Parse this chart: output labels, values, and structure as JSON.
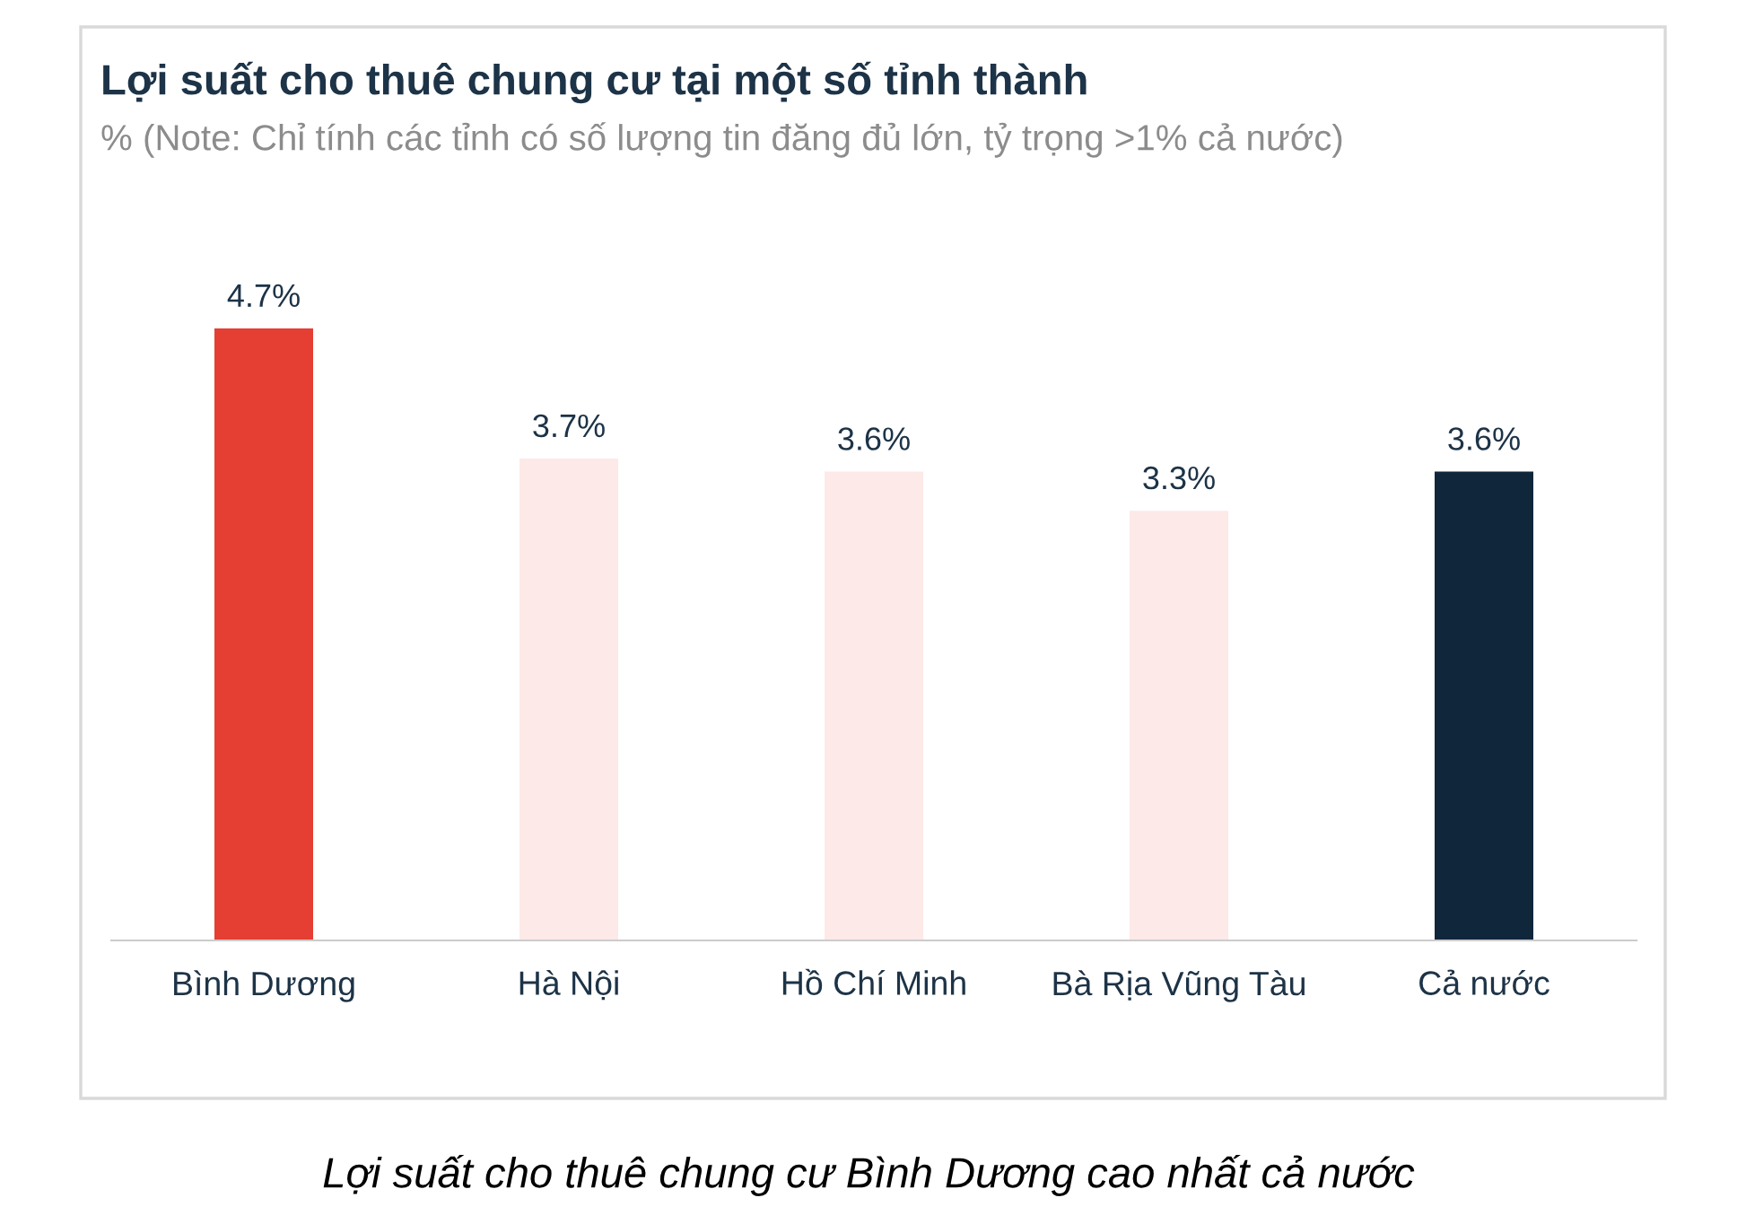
{
  "chart_data": {
    "type": "bar",
    "title": "Lợi suất cho thuê chung cư tại một số tỉnh thành",
    "subtitle": "% (Note: Chỉ tính các tỉnh có số lượng tin đăng đủ lớn, tỷ trọng >1% cả nước)",
    "categories": [
      "Bình Dương",
      "Hà Nội",
      "Hồ Chí Minh",
      "Bà Rịa Vũng Tàu",
      "Cả nước"
    ],
    "values": [
      4.7,
      3.7,
      3.6,
      3.3,
      3.6
    ],
    "colors": [
      "#e53e32",
      "#fde9e7",
      "#fde9e7",
      "#fde9e7",
      "#10263b"
    ],
    "value_labels": [
      "4.7%",
      "3.7%",
      "3.6%",
      "3.3%",
      "3.6%"
    ],
    "annotations": [
      "Lợi suất cho thuê chung cư Bình Dương cao nhất cả nước"
    ],
    "grid": false,
    "legend": false
  }
}
